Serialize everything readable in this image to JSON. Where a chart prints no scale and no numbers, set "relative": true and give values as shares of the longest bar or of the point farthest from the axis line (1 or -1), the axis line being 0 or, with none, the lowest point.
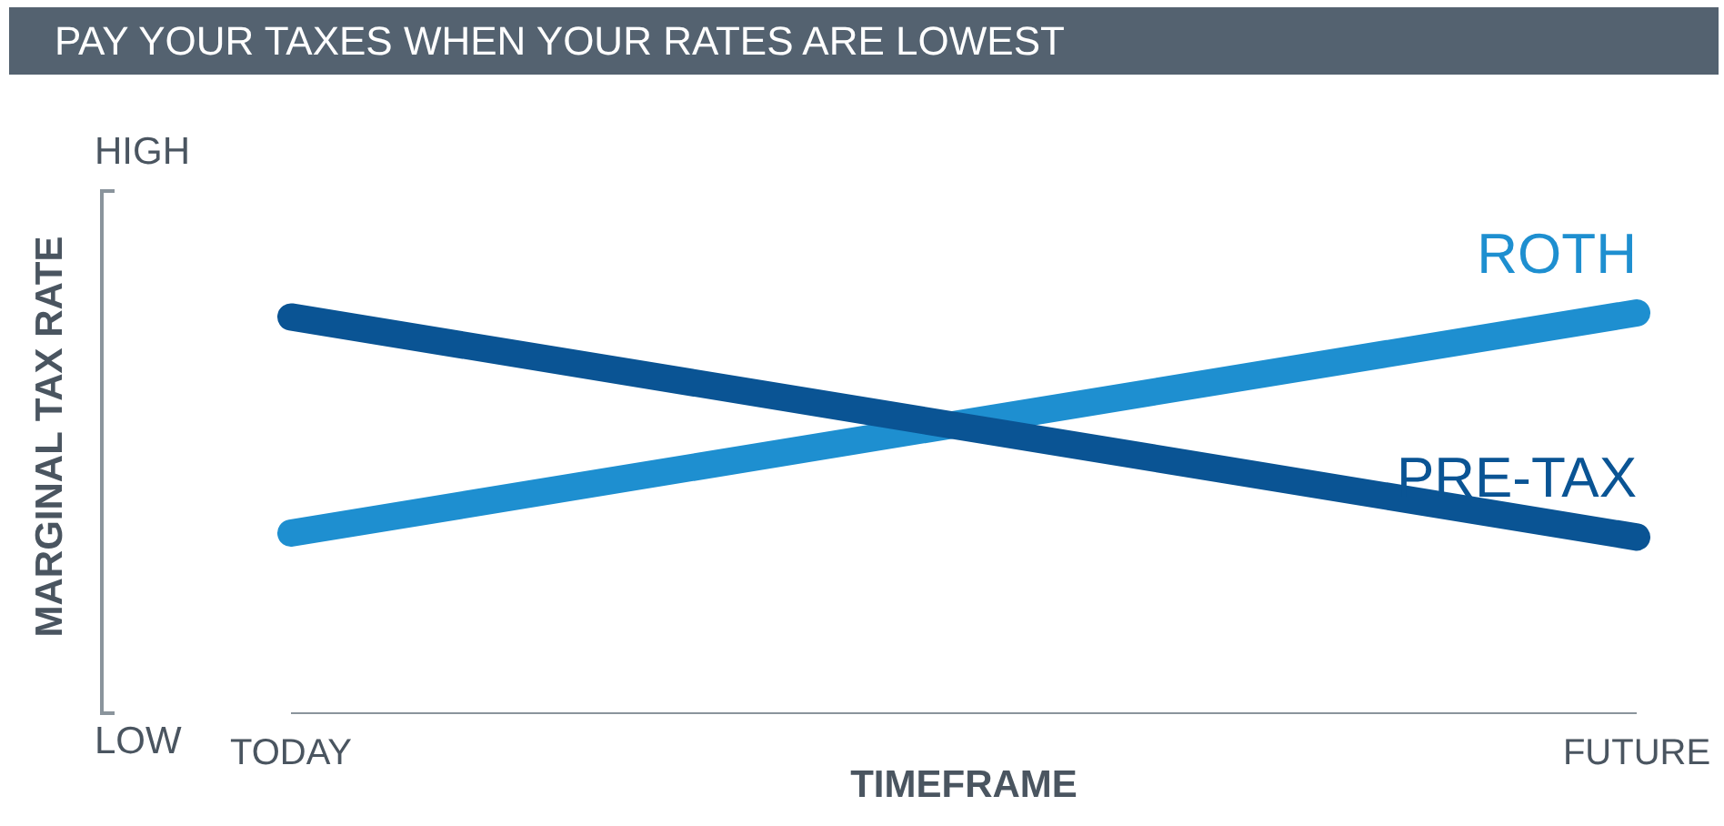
{
  "chart_data": {
    "type": "line",
    "title": "PAY YOUR TAXES WHEN YOUR RATES ARE LOWEST",
    "xlabel": "TIMEFRAME",
    "ylabel": "MARGINAL TAX RATE",
    "relative": true,
    "categories": [
      "TODAY",
      "FUTURE"
    ],
    "annotations": [
      "HIGH",
      "LOW"
    ],
    "series": [
      {
        "name": "ROTH",
        "color": "#1e8fd0",
        "values": [
          0.45,
          1
        ]
      },
      {
        "name": "PRE-TAX",
        "color": "#0a5494",
        "values": [
          0.99,
          0.44
        ]
      }
    ],
    "legend": false,
    "grid": false,
    "marker": "none",
    "line_style": "solid"
  }
}
